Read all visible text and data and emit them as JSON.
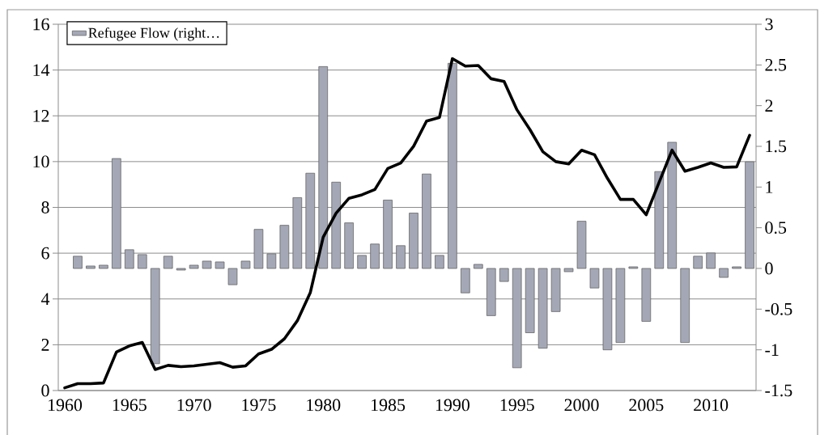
{
  "chart_data": {
    "type": "bar",
    "categories": [
      "1960",
      null,
      null,
      null,
      null,
      "1965",
      null,
      null,
      null,
      null,
      "1970",
      null,
      null,
      null,
      null,
      "1975",
      null,
      null,
      null,
      null,
      "1980",
      null,
      null,
      null,
      null,
      "1985",
      null,
      null,
      null,
      null,
      "1990",
      null,
      null,
      null,
      null,
      "1995",
      null,
      null,
      null,
      null,
      "2000",
      null,
      null,
      null,
      null,
      "2005",
      null,
      null,
      null,
      null,
      "2010",
      null,
      null,
      null
    ],
    "series": [
      {
        "name": "Refugee Flow (right…",
        "axis": "y2",
        "color": "#a4a8b6",
        "values": [
          null,
          0.15,
          0.03,
          0.04,
          1.35,
          0.23,
          0.17,
          -1.17,
          0.15,
          -0.02,
          0.04,
          0.09,
          0.08,
          -0.2,
          0.09,
          0.48,
          0.18,
          0.53,
          0.87,
          1.17,
          2.48,
          1.06,
          0.56,
          0.16,
          0.3,
          0.84,
          0.28,
          0.68,
          1.16,
          0.16,
          2.52,
          -0.3,
          0.05,
          -0.58,
          -0.16,
          -1.22,
          -0.79,
          -0.98,
          -0.53,
          -0.04,
          0.58,
          -0.24,
          -1.0,
          -0.91,
          0.02,
          -0.65,
          1.19,
          1.55,
          -0.91,
          0.15,
          0.19,
          -0.11,
          0.02,
          1.31
        ]
      },
      {
        "type": "line",
        "axis": "y",
        "color": "#000000",
        "values": [
          0.12,
          0.3,
          0.3,
          0.33,
          1.68,
          1.95,
          2.1,
          0.92,
          1.1,
          1.04,
          1.08,
          1.15,
          1.22,
          1.02,
          1.08,
          1.6,
          1.8,
          2.26,
          3.05,
          4.27,
          6.7,
          7.75,
          8.4,
          8.55,
          8.78,
          9.7,
          9.94,
          10.67,
          11.77,
          11.93,
          14.5,
          14.17,
          14.2,
          13.62,
          13.5,
          12.26,
          11.4,
          10.43,
          10.0,
          9.9,
          10.5,
          10.3,
          9.27,
          8.35,
          8.35,
          7.68,
          9.1,
          10.5,
          9.58,
          9.75,
          9.94,
          9.75,
          9.77,
          11.15
        ]
      }
    ],
    "ylim": [
      0,
      16
    ],
    "yticks": [
      0,
      2,
      4,
      6,
      8,
      10,
      12,
      14,
      16
    ],
    "y2lim": [
      -1.5,
      3
    ],
    "y2ticks": [
      -1.5,
      -1,
      -0.5,
      0,
      0.5,
      1,
      1.5,
      2,
      2.5,
      3
    ],
    "grid": "y",
    "legend": "top left"
  }
}
